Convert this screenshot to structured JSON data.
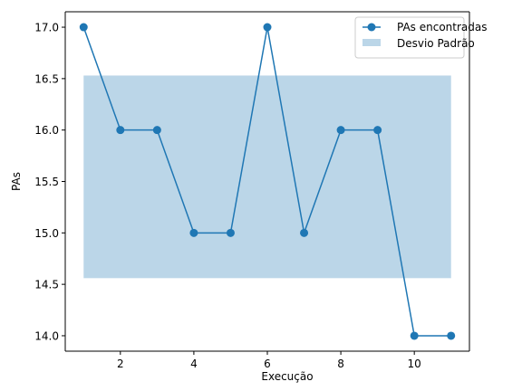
{
  "chart_data": {
    "type": "line",
    "xlabel": "Execução",
    "ylabel": "PAs",
    "xlim": [
      0.5,
      11.5
    ],
    "ylim": [
      13.85,
      17.15
    ],
    "xticks": [
      2,
      4,
      6,
      8,
      10
    ],
    "yticks": [
      14.0,
      14.5,
      15.0,
      15.5,
      16.0,
      16.5,
      17.0
    ],
    "ytick_labels": [
      "14.0",
      "14.5",
      "15.0",
      "15.5",
      "16.0",
      "16.5",
      "17.0"
    ],
    "grid": false,
    "legend_position": "top-right",
    "series": [
      {
        "name": "PAs encontradas",
        "x": [
          1,
          2,
          3,
          4,
          5,
          6,
          7,
          8,
          9,
          10,
          11
        ],
        "values": [
          17,
          16,
          16,
          15,
          15,
          17,
          15,
          16,
          16,
          14,
          14
        ],
        "color": "#1f77b4"
      }
    ],
    "band": {
      "name": "Desvio Padrão",
      "x_range": [
        1,
        11
      ],
      "y_range": [
        14.56,
        16.53
      ],
      "color": "#1f77b4",
      "opacity": 0.3
    }
  }
}
